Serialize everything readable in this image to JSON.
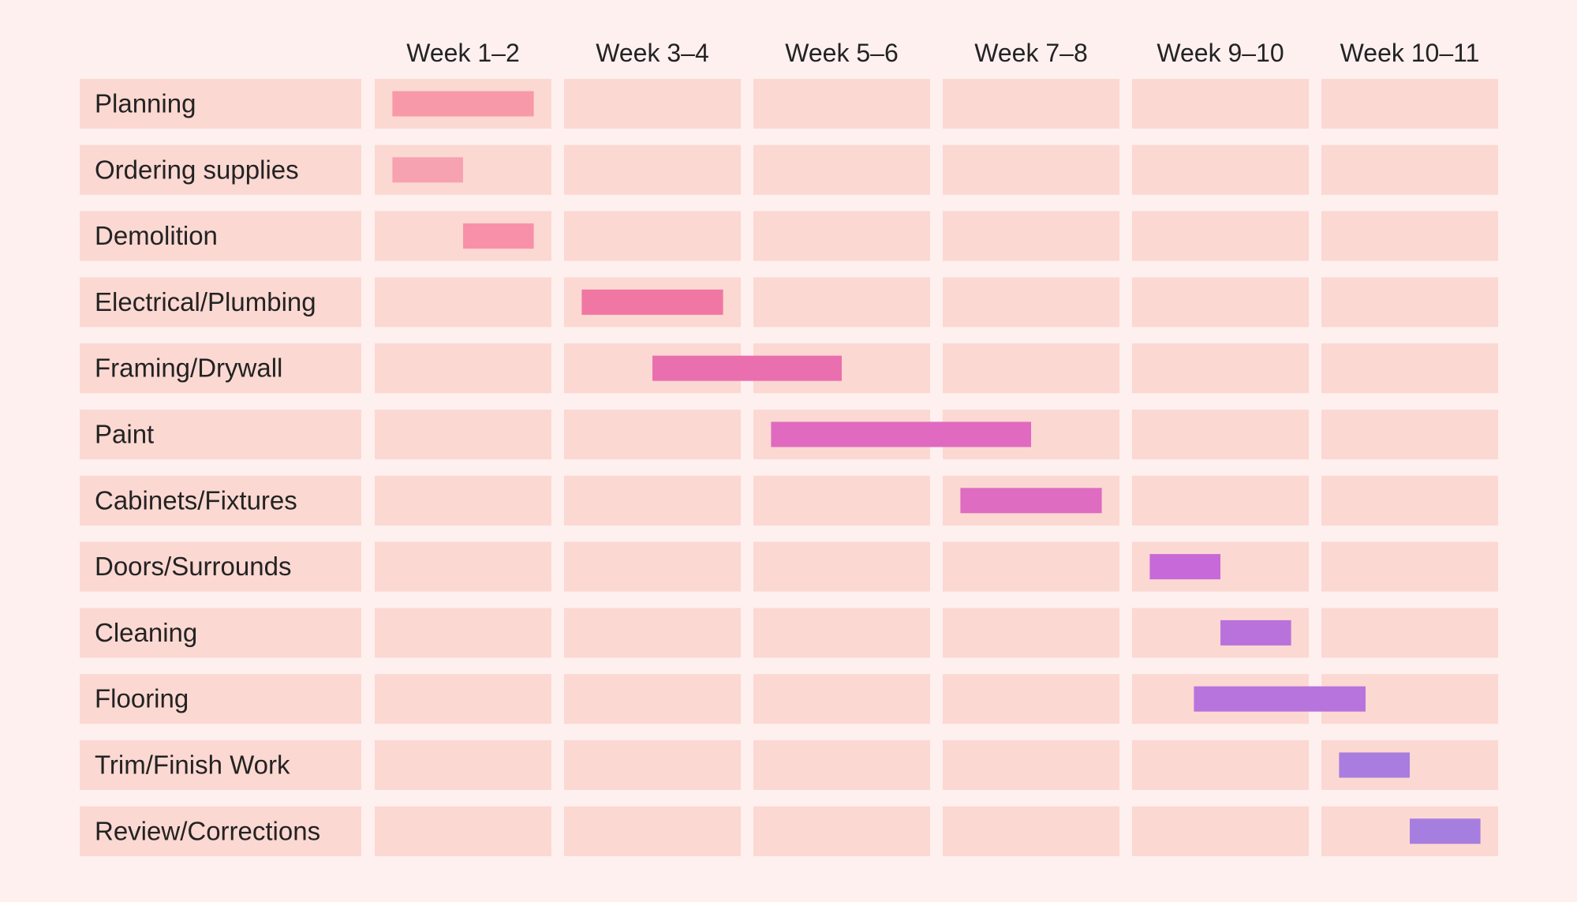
{
  "chart_data": {
    "type": "gantt",
    "columns": [
      "Week 1–2",
      "Week 3–4",
      "Week 5–6",
      "Week 7–8",
      "Week 9–10",
      "Week 10–11"
    ],
    "tasks": [
      {
        "label": "Planning",
        "start": 0.1,
        "end": 0.9,
        "color": "#f799a8"
      },
      {
        "label": "Ordering supplies",
        "start": 0.1,
        "end": 0.5,
        "color": "#f7a2b0"
      },
      {
        "label": "Demolition",
        "start": 0.5,
        "end": 0.9,
        "color": "#f790a8"
      },
      {
        "label": "Electrical/Plumbing",
        "start": 1.1,
        "end": 1.9,
        "color": "#f077a3"
      },
      {
        "label": "Framing/Drywall",
        "start": 1.5,
        "end": 2.5,
        "color": "#ea6faf"
      },
      {
        "label": "Paint",
        "start": 2.1,
        "end": 3.5,
        "color": "#e06ac0"
      },
      {
        "label": "Cabinets/Fixtures",
        "start": 3.1,
        "end": 3.9,
        "color": "#de6cc0"
      },
      {
        "label": "Doors/Surrounds",
        "start": 4.1,
        "end": 4.5,
        "color": "#c869d9"
      },
      {
        "label": "Cleaning",
        "start": 4.5,
        "end": 4.9,
        "color": "#b972dc"
      },
      {
        "label": "Flooring",
        "start": 4.35,
        "end": 5.25,
        "color": "#b774dd"
      },
      {
        "label": "Trim/Finish Work",
        "start": 5.1,
        "end": 5.5,
        "color": "#a97ce0"
      },
      {
        "label": "Review/Corrections",
        "start": 5.5,
        "end": 5.9,
        "color": "#a67ee0"
      }
    ],
    "colors": {
      "background": "#fdf0ef",
      "cell": "#fcd8d2",
      "text": "#232323"
    }
  }
}
